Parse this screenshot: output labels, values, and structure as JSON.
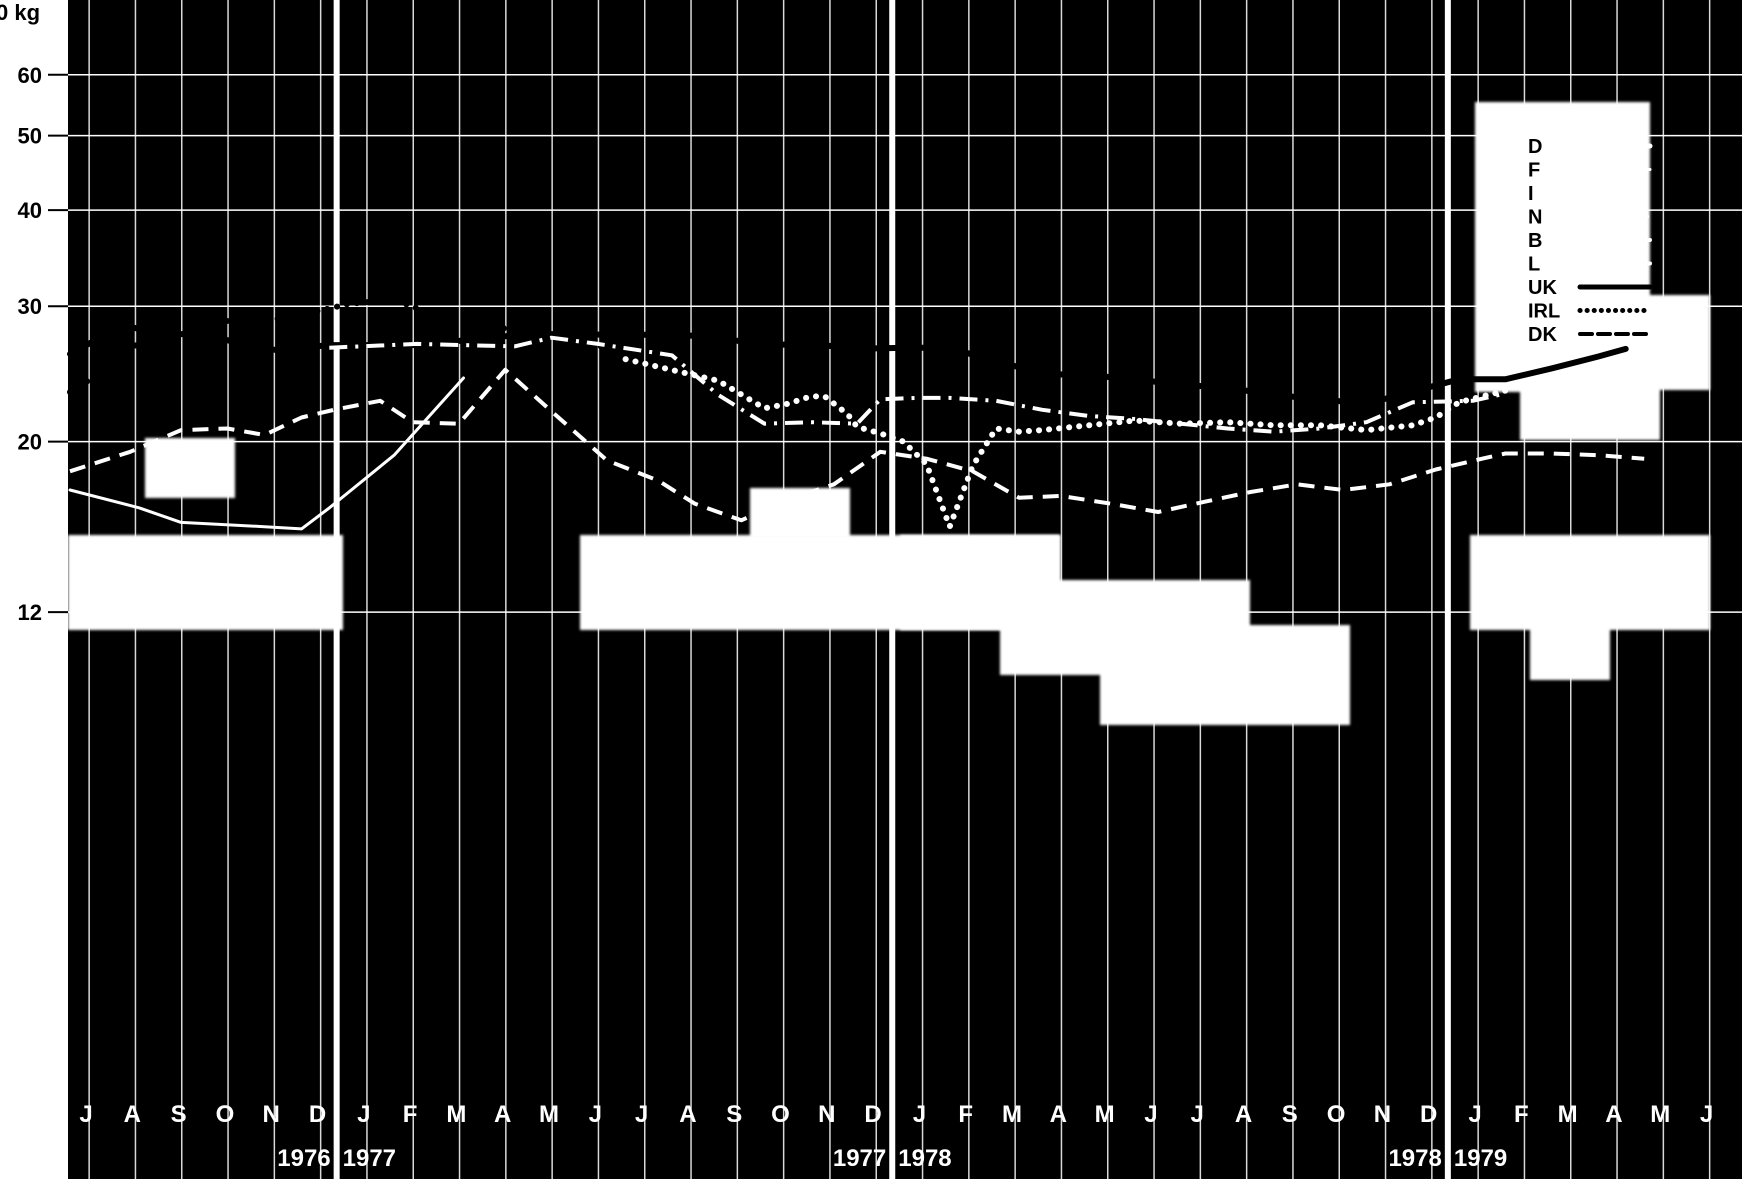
{
  "chart_data": {
    "type": "line",
    "unit_label": "0 kg",
    "y_scale": "log",
    "ylim": [
      11,
      66
    ],
    "y_ticks": [
      {
        "value": 60,
        "label": "60"
      },
      {
        "value": 50,
        "label": "50"
      },
      {
        "value": 40,
        "label": "40"
      },
      {
        "value": 30,
        "label": "30"
      },
      {
        "value": 20,
        "label": "20"
      },
      {
        "value": 12,
        "label": "12"
      }
    ],
    "months": [
      "J",
      "A",
      "S",
      "O",
      "N",
      "D",
      "J",
      "F",
      "M",
      "A",
      "M",
      "J",
      "J",
      "A",
      "S",
      "O",
      "N",
      "D",
      "J",
      "F",
      "M",
      "A",
      "M",
      "J",
      "J",
      "A",
      "S",
      "O",
      "N",
      "D",
      "J",
      "F",
      "M",
      "A",
      "M",
      "J"
    ],
    "years": [
      {
        "label": "1976",
        "after_month_index": 5,
        "align": "end"
      },
      {
        "label": "1977",
        "after_month_index": 5,
        "align": "start"
      },
      {
        "label": "1977",
        "after_month_index": 17,
        "align": "end"
      },
      {
        "label": "1978",
        "after_month_index": 17,
        "align": "start"
      },
      {
        "label": "1978",
        "after_month_index": 29,
        "align": "end"
      },
      {
        "label": "1979",
        "after_month_index": 29,
        "align": "start"
      }
    ],
    "legend": [
      {
        "label": "D",
        "style": "solid",
        "color": "#ffffff"
      },
      {
        "label": "F",
        "style": "thin",
        "color": "#ffffff"
      },
      {
        "label": "I",
        "style": "dotted",
        "color": "#ffffff"
      },
      {
        "label": "N",
        "style": "dashdot",
        "color": "#ffffff"
      },
      {
        "label": "B",
        "style": "dashdotdot",
        "color": "#ffffff"
      },
      {
        "label": "L",
        "style": "dashdotdot",
        "color": "#ffffff"
      },
      {
        "label": "UK",
        "style": "solid",
        "color": "#000000"
      },
      {
        "label": "IRL",
        "style": "dotted",
        "color": "#000000"
      },
      {
        "label": "DK",
        "style": "dashed",
        "color": "#000000"
      }
    ],
    "series": [
      {
        "name": "UK",
        "color": "#000000",
        "style": "solid-thick",
        "x": [
          0,
          0.5,
          1.3,
          2,
          2.4,
          2.9,
          3.4,
          4,
          4.5,
          5,
          5.6,
          7.5,
          9.6,
          10,
          11,
          12,
          13,
          14,
          15,
          16,
          17,
          18,
          19,
          20,
          20.5,
          21,
          22,
          23,
          24,
          25,
          26,
          28,
          30,
          31,
          32,
          33,
          33.6
        ],
        "y": [
          26,
          27,
          28.2,
          27.6,
          27.6,
          27.6,
          27.1,
          26.5,
          26.3,
          26.5,
          26.7,
          26.7,
          27.5,
          27.6,
          27.6,
          27.5,
          27.6,
          27.3,
          26.7,
          26.8,
          26.4,
          26.5,
          26.5,
          25.4,
          25,
          24.5,
          24.4,
          24.1,
          23.7,
          23.5,
          23,
          22.4,
          24.1,
          24.1,
          24.9,
          25.8,
          26.4
        ]
      },
      {
        "name": "IRL",
        "color": "#000000",
        "style": "dotted",
        "x": [
          0,
          1,
          2,
          3.4,
          4.5,
          5.5,
          6,
          6.5,
          7,
          7.5,
          8,
          8.5,
          9,
          9.5,
          10,
          11,
          12
        ],
        "y": [
          23.2,
          25.3,
          28.7,
          28.7,
          28.9,
          29.7,
          30.2,
          30.4,
          30.6,
          29.8,
          29.1,
          28.5,
          28.3,
          28,
          27.5,
          27.6,
          25.5
        ]
      },
      {
        "name": "IRL",
        "color": "#ffffff",
        "style": "dotted",
        "x": [
          12,
          14,
          15,
          15.5,
          16,
          16.3,
          16.8,
          17,
          17.5,
          18,
          18.5,
          19,
          19.5,
          20,
          20.5,
          21,
          22,
          23,
          24,
          25,
          26,
          27,
          28,
          29,
          29.5,
          30,
          31
        ],
        "y": [
          25.6,
          24,
          22.1,
          22.4,
          22.9,
          22.9,
          21.7,
          20.9,
          20.5,
          20,
          18.7,
          15.5,
          18.6,
          20.8,
          20.6,
          20.7,
          21,
          21.3,
          21.1,
          21.2,
          21,
          21,
          20.7,
          21,
          21.5,
          22.5,
          23.3
        ]
      },
      {
        "name": "DK",
        "color": "#ffffff",
        "style": "dashed",
        "x": [
          0,
          1.3,
          2.4,
          3.4,
          4.2,
          5,
          5.7,
          6.7,
          7.4,
          8.4,
          9.4,
          10.4,
          11.6,
          12.7,
          13.5,
          14.5,
          15.5,
          16.5,
          17.5,
          18.5,
          19.5,
          20.5,
          21.4,
          22.5,
          23.5,
          24.5,
          25.5,
          26.5,
          27.5,
          28.5,
          29.5,
          30.5,
          31,
          32,
          33,
          34
        ],
        "y": [
          18.3,
          19.4,
          20.7,
          20.8,
          20.4,
          21.5,
          22,
          22.6,
          21.2,
          21.1,
          24.8,
          21.9,
          18.9,
          17.8,
          16.6,
          15.8,
          16.8,
          17.6,
          19.4,
          19,
          18.3,
          16.9,
          17,
          16.6,
          16.2,
          16.7,
          17.2,
          17.6,
          17.3,
          17.6,
          18.4,
          19,
          19.3,
          19.3,
          19.2,
          19
        ]
      },
      {
        "name": "N",
        "color": "#ffffff",
        "style": "dashdot",
        "x": [
          5.6,
          7.5,
          9.6,
          10.4,
          11.4,
          13,
          14,
          15,
          16,
          17,
          17.5,
          18.3,
          19,
          20,
          21,
          22,
          23,
          24,
          25,
          26,
          27,
          28,
          29,
          30.3,
          31
        ],
        "y": [
          26.5,
          26.8,
          26.6,
          27.3,
          26.8,
          25.9,
          23,
          21.1,
          21.2,
          21.1,
          22.7,
          22.8,
          22.8,
          22.6,
          22,
          21.6,
          21.4,
          21.1,
          20.8,
          20.6,
          20.8,
          21.2,
          22.5,
          22.6,
          23.1
        ]
      },
      {
        "name": "F",
        "color": "#ffffff",
        "style": "thin",
        "x": [
          0,
          1.5,
          2.4,
          4.2,
          5,
          5.6,
          7,
          8.5
        ],
        "y": [
          17.3,
          16.4,
          15.7,
          15.5,
          15.4,
          16.4,
          19.2,
          24.2
        ]
      }
    ]
  }
}
